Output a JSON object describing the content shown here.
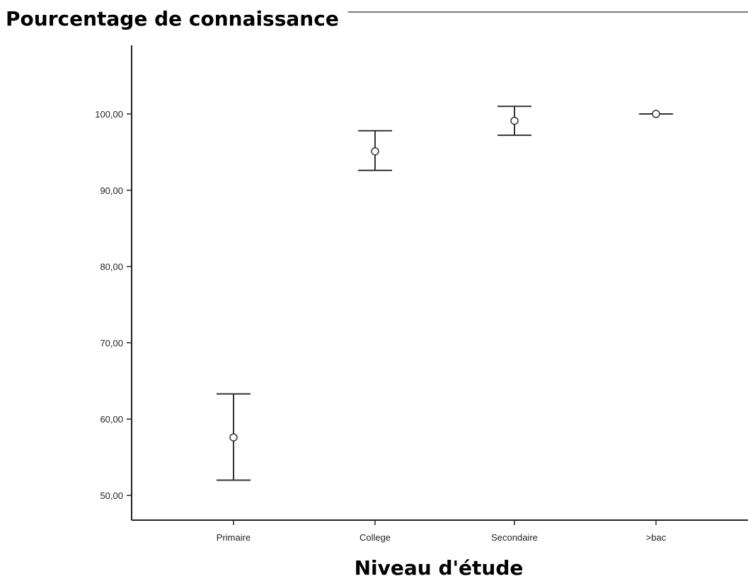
{
  "chart_data": {
    "type": "scatter",
    "title": "Pourcentage de connaissance",
    "xlabel": "Niveau d'étude",
    "ylabel": "",
    "categories": [
      "Primaire",
      "College",
      "Secondaire",
      ">bac"
    ],
    "y_ticks": [
      "50,00",
      "60,00",
      "70,00",
      "80,00",
      "90,00",
      "100,00"
    ],
    "y_tick_values": [
      50,
      60,
      70,
      80,
      90,
      100
    ],
    "ylim": [
      48,
      108
    ],
    "grid": false,
    "series": [
      {
        "mean": [
          57.6,
          95.1,
          99.1,
          100.0
        ],
        "lower": [
          52.0,
          92.6,
          97.2,
          100.0
        ],
        "upper": [
          63.3,
          97.8,
          101.0,
          100.0
        ]
      }
    ],
    "colors": {
      "axis": "#222222",
      "marker": "#333333",
      "errorbar": "#333333"
    }
  }
}
